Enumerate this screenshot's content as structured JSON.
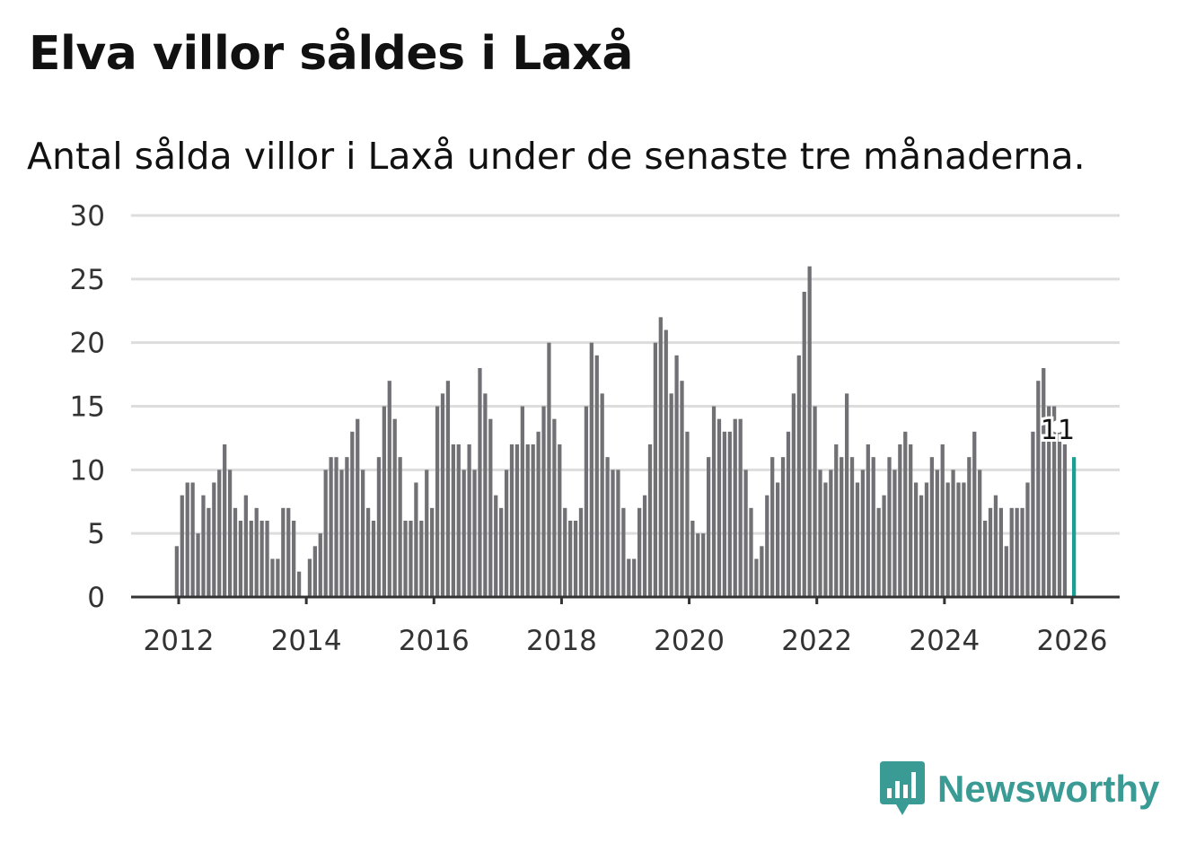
{
  "title": "Elva villor såldes i Laxå",
  "subtitle": "Antal sålda villor i Laxå under de senaste tre månaderna.",
  "brand": {
    "name": "Newsworthy",
    "color": "#3a9a94"
  },
  "colors": {
    "bar": "#717075",
    "highlight": "#1a9e96",
    "grid": "#dddddd",
    "axis": "#333333"
  },
  "chart_data": {
    "type": "bar",
    "title": "Elva villor såldes i Laxå",
    "subtitle": "Antal sålda villor i Laxå under de senaste tre månaderna.",
    "xlabel": "",
    "ylabel": "",
    "ylim": [
      0,
      30
    ],
    "yticks": [
      0,
      5,
      10,
      15,
      20,
      25,
      30
    ],
    "xticks": [
      "2012",
      "2014",
      "2016",
      "2018",
      "2020",
      "2022",
      "2024",
      "2026"
    ],
    "x_start": "2012-01",
    "x_end": "2026-01",
    "grid": true,
    "highlight_label": "11",
    "values": [
      4,
      8,
      9,
      9,
      5,
      8,
      7,
      9,
      10,
      12,
      10,
      7,
      6,
      8,
      6,
      7,
      6,
      6,
      3,
      3,
      7,
      7,
      6,
      2,
      0,
      3,
      4,
      5,
      10,
      11,
      11,
      10,
      11,
      13,
      14,
      10,
      7,
      6,
      11,
      15,
      17,
      14,
      11,
      6,
      6,
      9,
      6,
      10,
      7,
      15,
      16,
      17,
      12,
      12,
      10,
      12,
      10,
      18,
      16,
      14,
      8,
      7,
      10,
      12,
      12,
      15,
      12,
      12,
      13,
      15,
      20,
      14,
      12,
      7,
      6,
      6,
      7,
      15,
      20,
      19,
      16,
      11,
      10,
      10,
      7,
      3,
      3,
      7,
      8,
      12,
      20,
      22,
      21,
      16,
      19,
      17,
      13,
      6,
      5,
      5,
      11,
      15,
      14,
      13,
      13,
      14,
      14,
      10,
      7,
      3,
      4,
      8,
      11,
      9,
      11,
      13,
      16,
      19,
      24,
      26,
      15,
      10,
      9,
      10,
      12,
      11,
      16,
      11,
      9,
      10,
      12,
      11,
      7,
      8,
      11,
      10,
      12,
      13,
      12,
      9,
      8,
      9,
      11,
      10,
      12,
      9,
      10,
      9,
      9,
      11,
      13,
      10,
      6,
      7,
      8,
      7,
      4,
      7,
      7,
      7,
      9,
      13,
      17,
      18,
      15,
      15,
      13,
      12,
      11
    ]
  }
}
